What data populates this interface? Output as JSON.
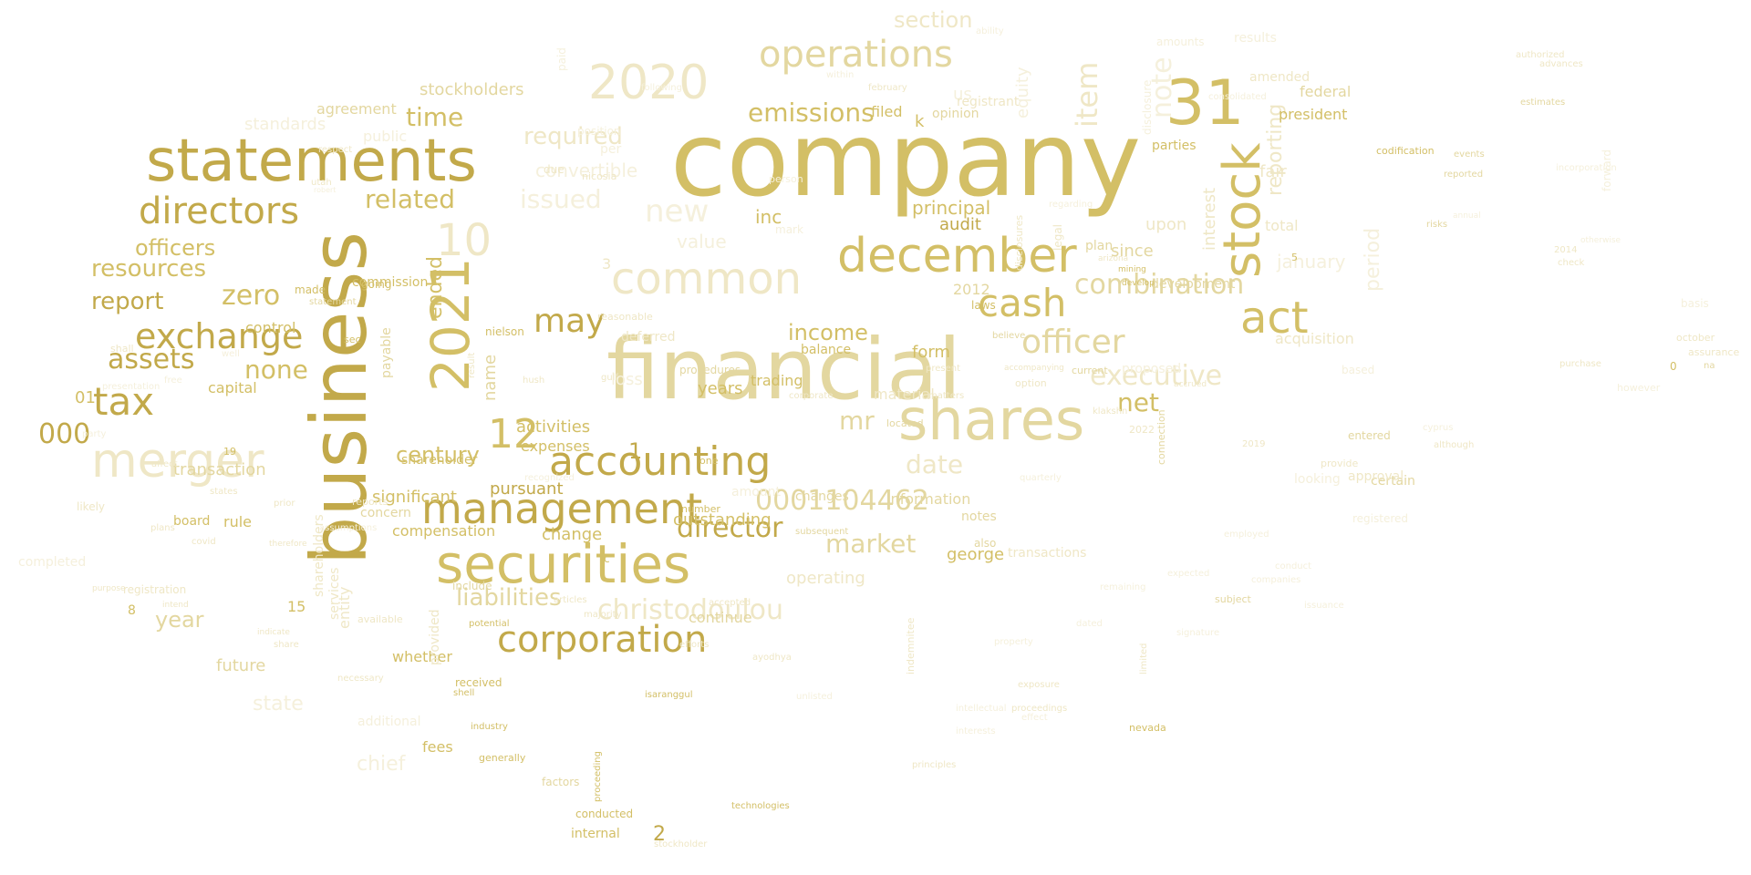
{
  "palette": {
    "background": "#ffffff",
    "gold_dark": "#c2a94a",
    "gold": "#d3bf66",
    "gold_light": "#e3d7a0",
    "gold_pale": "#efe7c6",
    "gold_faint": "#f5f0dc"
  },
  "words": [
    "company",
    "financial",
    "business",
    "statements",
    "shares",
    "securities",
    "december",
    "management",
    "accounting",
    "merger",
    "corporation",
    "common",
    "operations",
    "2020",
    "31",
    "2021",
    "stock",
    "act",
    "directors",
    "cash",
    "exchange",
    "tax",
    "officer",
    "christodoulou",
    "0001104462",
    "director",
    "executive",
    "combination",
    "assets",
    "emissions",
    "related",
    "10",
    "12",
    "may",
    "required",
    "new",
    "issued",
    "time",
    "resources",
    "officers",
    "zero",
    "report",
    "none",
    "date",
    "market",
    "liabilities",
    "000",
    "mr",
    "note",
    "item",
    "equity",
    "century",
    "income",
    "net",
    "reporting",
    "period",
    "january",
    "value",
    "convertible",
    "section",
    "stockholders",
    "standards",
    "agreement",
    "public",
    "inc",
    "principal",
    "audit",
    "interest",
    "upon",
    "since",
    "fair",
    "total",
    "acquisition",
    "president",
    "federal",
    "amended",
    "ended",
    "activities",
    "expenses",
    "pursuant",
    "significant",
    "compensation",
    "change",
    "outstanding",
    "operating",
    "continue",
    "george",
    "chief",
    "state",
    "future",
    "whether",
    "fees",
    "year",
    "transaction",
    "board",
    "rule",
    "capital",
    "control",
    "commission",
    "01",
    "payable",
    "name",
    "loss",
    "years",
    "trading",
    "balance",
    "procedures",
    "material",
    "proposed",
    "development",
    "plan",
    "parties",
    "filed",
    "opinion",
    "us",
    "k",
    "form",
    "entity",
    "shareholders",
    "services",
    "provided",
    "additional",
    "completed",
    "likely",
    "internal",
    "conducted",
    "factors",
    "generally",
    "industry",
    "potential",
    "include",
    "received",
    "shell",
    "information",
    "notes",
    "transactions",
    "also",
    "amount",
    "changes",
    "looking",
    "certain",
    "approval",
    "registered",
    "based",
    "entered",
    "provide",
    "october",
    "assurance",
    "however",
    "deferred",
    "reasonable",
    "nielson",
    "going",
    "made",
    "statement",
    "sec",
    "shall",
    "shareholder",
    "result",
    "2012",
    "laws",
    "located",
    "current",
    "nevada",
    "connection",
    "one",
    "number",
    "subsequent",
    "isaranggul",
    "technologies",
    "proceeding",
    "stockholder",
    "2",
    "15",
    "3",
    "19",
    "8",
    "5",
    "c",
    "1",
    "0",
    "registrant",
    "results",
    "amounts",
    "ability",
    "authorized",
    "advances",
    "estimates",
    "codification",
    "events",
    "reported",
    "forward",
    "risks",
    "subject",
    "companies",
    "conduct",
    "check",
    "incorporation",
    "position",
    "paid",
    "following",
    "february",
    "within",
    "due",
    "per",
    "nicosia",
    "respect",
    "utah",
    "robert",
    "disclosure",
    "disclosures",
    "legal",
    "mining",
    "arizona",
    "develop",
    "effect",
    "present",
    "believe",
    "option",
    "matters",
    "corporate",
    "accepted",
    "efforts",
    "majority",
    "articles",
    "purpose",
    "intend",
    "necessary",
    "indicate",
    "share",
    "therefore",
    "plans",
    "states",
    "prior",
    "affect",
    "party",
    "free",
    "well",
    "reports",
    "concern",
    "available",
    "covid",
    "mark",
    "person",
    "accompanying",
    "accrued",
    "2022",
    "2019",
    "2014",
    "annual",
    "otherwise",
    "registration",
    "presentation",
    "principles",
    "limited",
    "interests",
    "basis",
    "na",
    "purchase",
    "gulf",
    "hush",
    "ayodhya",
    "unlisted",
    "indemnitee",
    "intellectual",
    "proceedings",
    "exposure",
    "cyprus",
    "although",
    "employed",
    "expected",
    "remaining",
    "klakshn",
    "quarterly",
    "assumptions",
    "recognized",
    "consolidated",
    "regarding",
    "property",
    "signature",
    "dated",
    "issuance"
  ]
}
